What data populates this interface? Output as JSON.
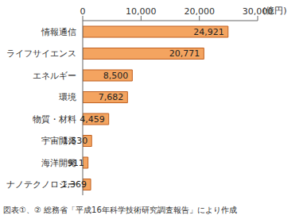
{
  "chart_data": {
    "type": "bar",
    "orientation": "horizontal",
    "xlabel": "(億円)",
    "annotation": "図表①、② 総務省「平成16年科学技術研究調査報告」により作成",
    "categories": [
      "情報通信",
      "ライフサイエンス",
      "エネルギー",
      "環境",
      "物質・材料",
      "宇宙開発",
      "海洋開発",
      "ナノテクノロジー"
    ],
    "values": [
      24921,
      20771,
      8500,
      7682,
      4459,
      1530,
      911,
      1369
    ],
    "value_labels": [
      "24,921",
      "20,771",
      "8,500",
      "7,682",
      "4,459",
      "1,530",
      "911",
      "1,369"
    ],
    "color": "#f4a460",
    "xlim": [
      0,
      30000
    ],
    "xticks": [
      0,
      {
        "value": 10000,
        "label": "10,000"
      },
      {
        "value": 20000,
        "label": "20,000"
      },
      {
        "value": 30000,
        "label": "30,000"
      }
    ],
    "grid": false,
    "data_labels": true
  }
}
